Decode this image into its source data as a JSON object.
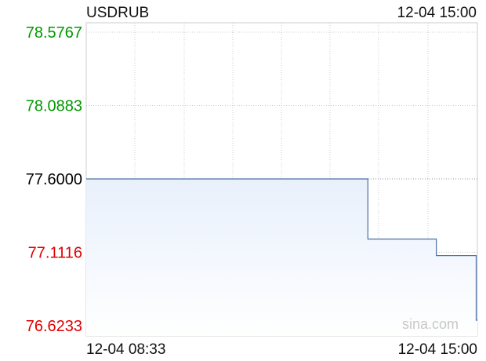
{
  "header": {
    "symbol": "USDRUB",
    "time": "12-04 15:00"
  },
  "watermark": "sina.com",
  "colors": {
    "up": "#009900",
    "down": "#e00000",
    "neutral": "#000000",
    "line": "#4a6fa5",
    "fill": "#e8f0fc",
    "grid": "#cccccc",
    "watermark": "#c8c8c8"
  },
  "chart_data": {
    "type": "line",
    "series": [
      {
        "x": [
          0,
          0.72,
          0.72,
          0.895,
          0.895,
          0.997,
          0.997,
          1.0
        ],
        "values": [
          77.6,
          77.6,
          77.2,
          77.2,
          77.09,
          77.09,
          76.66,
          76.66
        ]
      }
    ],
    "x_labels": [
      "12-04 08:33",
      "12-04 15:00"
    ],
    "y_ticks": [
      "78.5767",
      "78.0883",
      "77.6000",
      "77.1116",
      "76.6233"
    ],
    "y_tick_values": [
      78.5767,
      78.0883,
      77.6,
      77.1116,
      76.6233
    ],
    "ylim": [
      76.6233,
      78.5767
    ],
    "reference_value": 77.6,
    "grid": true
  }
}
